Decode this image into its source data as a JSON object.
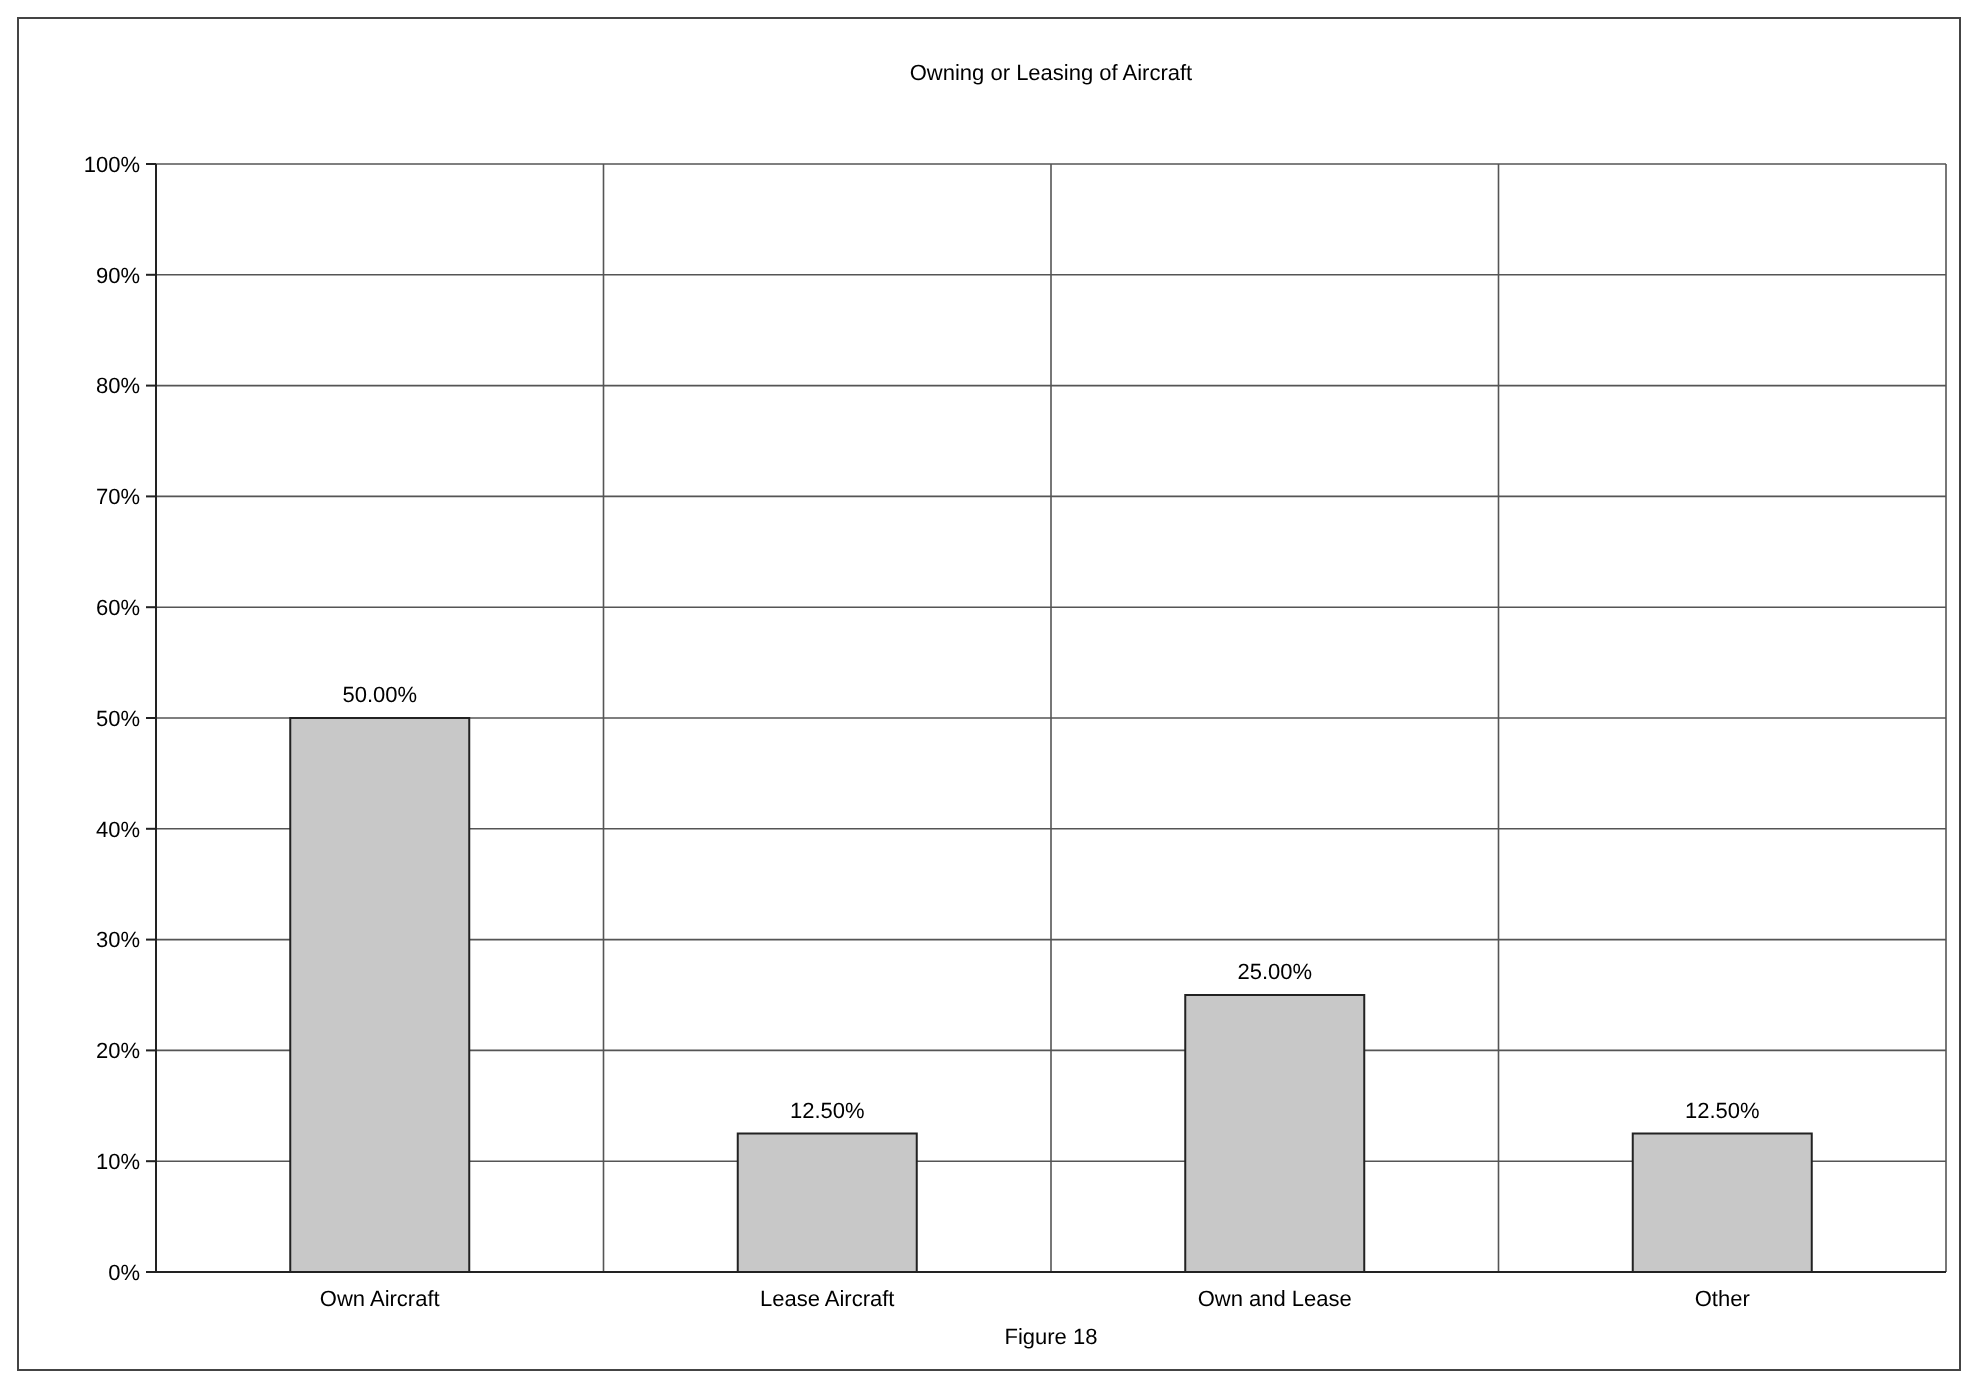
{
  "chart_data": {
    "type": "bar",
    "title": "Owning or Leasing of Aircraft",
    "categories": [
      "Own Aircraft",
      "Lease Aircraft",
      "Own and Lease",
      "Other"
    ],
    "values": [
      50,
      12.5,
      25,
      12.5
    ],
    "color": "#c8c8c8",
    "value_labels": [
      "50.00%",
      "12.50%",
      "25.00%",
      "12.50%"
    ],
    "ylim": [
      0,
      100
    ],
    "yticks": [
      {
        "value": 0,
        "label": "0%"
      },
      {
        "value": 10,
        "label": "10%"
      },
      {
        "value": 20,
        "label": "20%"
      },
      {
        "value": 30,
        "label": "30%"
      },
      {
        "value": 40,
        "label": "40%"
      },
      {
        "value": 50,
        "label": "50%"
      },
      {
        "value": 60,
        "label": "60%"
      },
      {
        "value": 70,
        "label": "70%"
      },
      {
        "value": 80,
        "label": "80%"
      },
      {
        "value": 90,
        "label": "90%"
      },
      {
        "value": 100,
        "label": "100%"
      }
    ],
    "grid": true,
    "annotations": [
      "Figure 18"
    ]
  }
}
